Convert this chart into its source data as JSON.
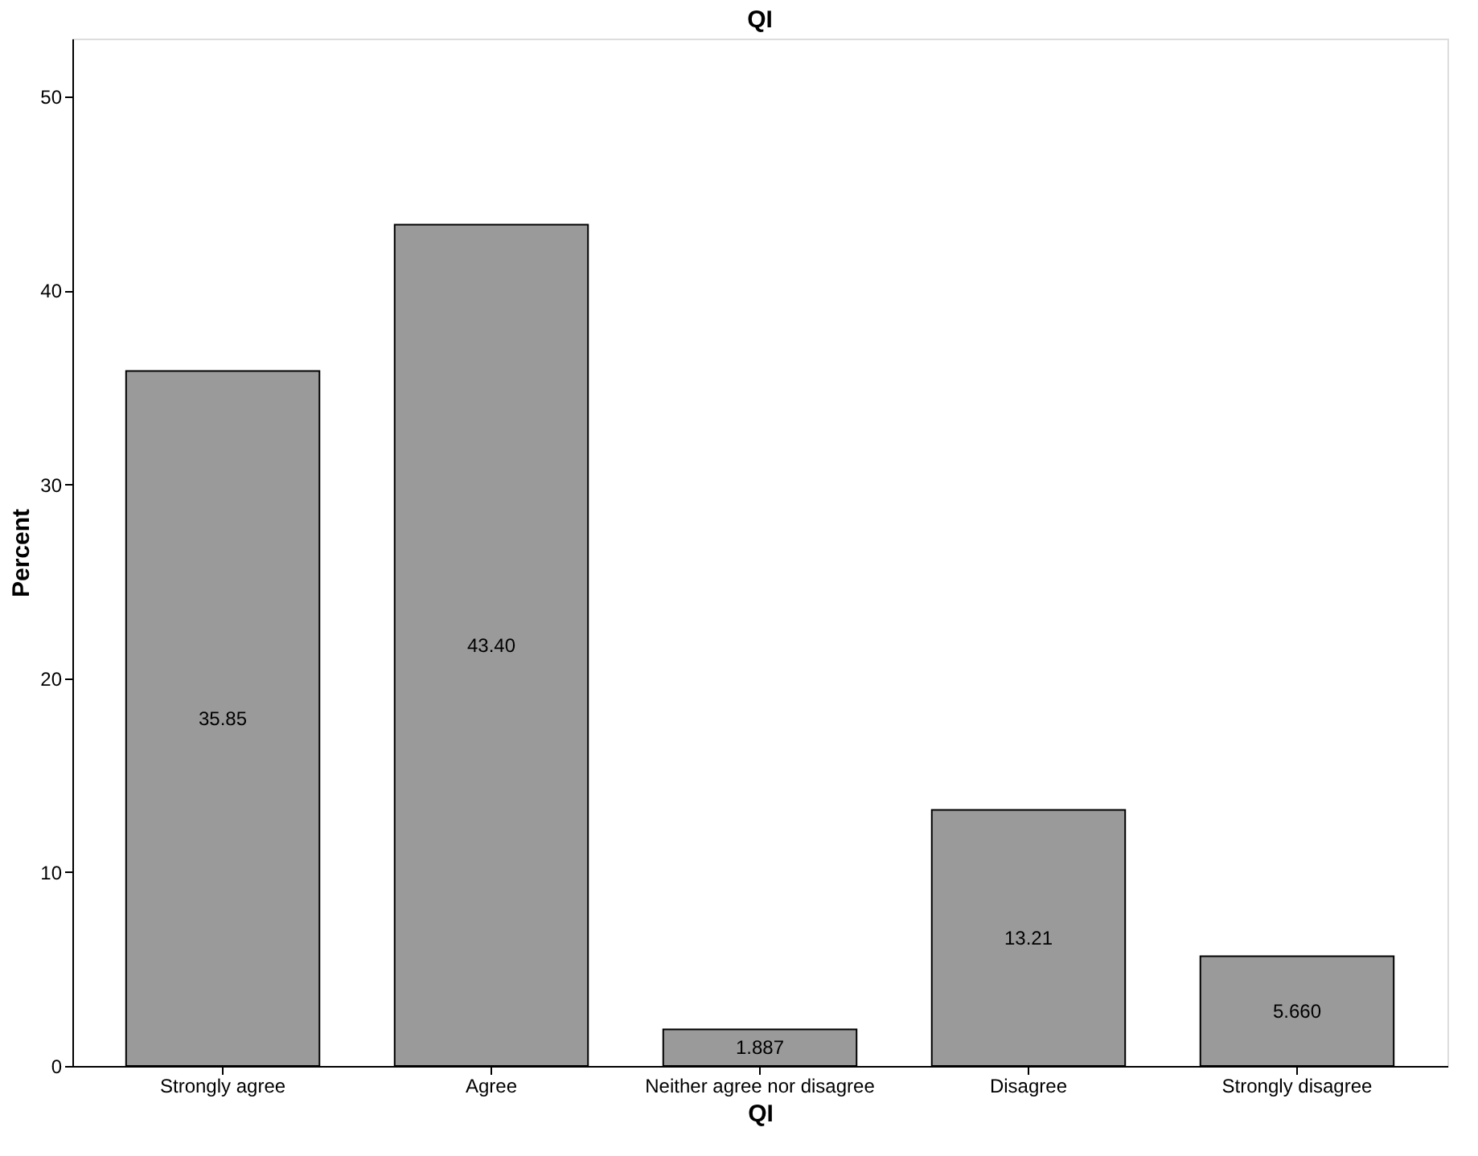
{
  "chart_data": {
    "type": "bar",
    "title": "QI",
    "xlabel": "QI",
    "ylabel": "Percent",
    "categories": [
      "Strongly agree",
      "Agree",
      "Neither agree nor disagree",
      "Disagree",
      "Strongly disagree"
    ],
    "values": [
      35.85,
      43.4,
      1.887,
      13.21,
      5.66
    ],
    "value_labels": [
      "35.85",
      "43.40",
      "1.887",
      "13.21",
      "5.660"
    ],
    "color": "#9a9a9a",
    "ylim": [
      0,
      53
    ],
    "yticks": [
      0,
      10,
      20,
      30,
      40,
      50
    ],
    "grid": false
  }
}
